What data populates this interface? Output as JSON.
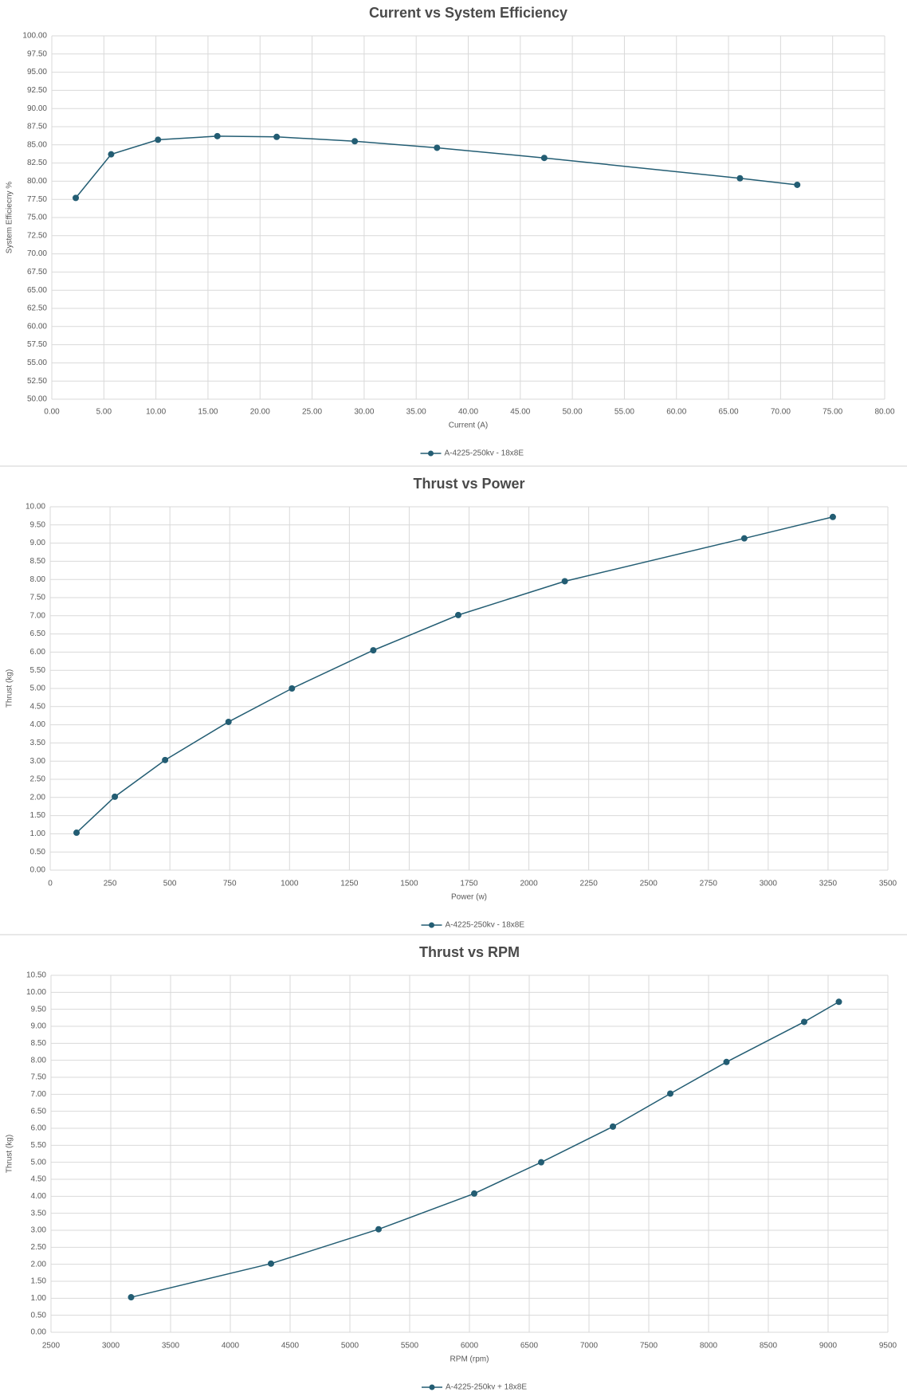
{
  "chart_data": [
    {
      "type": "line",
      "title": "Current vs System Efficiency",
      "x_label": "Current (A)",
      "y_label": "System Efficiecny %",
      "x": [
        2.3,
        5.7,
        10.2,
        15.9,
        21.6,
        29.1,
        37.0,
        47.3,
        66.1,
        71.6
      ],
      "series": [
        {
          "name": "A-4225-250kv - 18x8E",
          "color": "#235d73",
          "values": [
            77.7,
            83.7,
            85.7,
            86.2,
            86.1,
            85.5,
            84.6,
            83.2,
            80.4,
            79.5
          ]
        }
      ],
      "xlim": [
        0,
        80
      ],
      "ylim": [
        50,
        100
      ],
      "grid": true,
      "xticks": [
        {
          "value": 0,
          "label": "0.00"
        },
        {
          "value": 5,
          "label": "5.00"
        },
        {
          "value": 10,
          "label": "10.00"
        },
        {
          "value": 15,
          "label": "15.00"
        },
        {
          "value": 20,
          "label": "20.00"
        },
        {
          "value": 25,
          "label": "25.00"
        },
        {
          "value": 30,
          "label": "30.00"
        },
        {
          "value": 35,
          "label": "35.00"
        },
        {
          "value": 40,
          "label": "40.00"
        },
        {
          "value": 45,
          "label": "45.00"
        },
        {
          "value": 50,
          "label": "50.00"
        },
        {
          "value": 55,
          "label": "55.00"
        },
        {
          "value": 60,
          "label": "60.00"
        },
        {
          "value": 65,
          "label": "65.00"
        },
        {
          "value": 70,
          "label": "70.00"
        },
        {
          "value": 75,
          "label": "75.00"
        },
        {
          "value": 80,
          "label": "80.00"
        }
      ],
      "yticks": [
        {
          "value": 50,
          "label": "50.00"
        },
        {
          "value": 52.5,
          "label": "52.50"
        },
        {
          "value": 55,
          "label": "55.00"
        },
        {
          "value": 57.5,
          "label": "57.50"
        },
        {
          "value": 60,
          "label": "60.00"
        },
        {
          "value": 62.5,
          "label": "62.50"
        },
        {
          "value": 65,
          "label": "65.00"
        },
        {
          "value": 67.5,
          "label": "67.50"
        },
        {
          "value": 70,
          "label": "70.00"
        },
        {
          "value": 72.5,
          "label": "72.50"
        },
        {
          "value": 75,
          "label": "75.00"
        },
        {
          "value": 77.5,
          "label": "77.50"
        },
        {
          "value": 80,
          "label": "80.00"
        },
        {
          "value": 82.5,
          "label": "82.50"
        },
        {
          "value": 85,
          "label": "85.00"
        },
        {
          "value": 87.5,
          "label": "87.50"
        },
        {
          "value": 90,
          "label": "90.00"
        },
        {
          "value": 92.5,
          "label": "92.50"
        },
        {
          "value": 95,
          "label": "95.00"
        },
        {
          "value": 97.5,
          "label": "97.50"
        },
        {
          "value": 100,
          "label": "100.00"
        }
      ]
    },
    {
      "type": "line",
      "title": "Thrust vs Power",
      "x_label": "Power (w)",
      "y_label": "Thrust (kg)",
      "x": [
        110,
        270,
        480,
        745,
        1010,
        1350,
        1705,
        2150,
        2900,
        3270
      ],
      "series": [
        {
          "name": "A-4225-250kv - 18x8E",
          "color": "#235d73",
          "values": [
            1.03,
            2.02,
            3.03,
            4.08,
            5.0,
            6.05,
            7.02,
            7.95,
            9.13,
            9.72
          ]
        }
      ],
      "xlim": [
        0,
        3500
      ],
      "ylim": [
        0,
        10
      ],
      "grid": true,
      "xticks": [
        0,
        250,
        500,
        750,
        1000,
        1250,
        1500,
        1750,
        2000,
        2250,
        2500,
        2750,
        3000,
        3250,
        3500
      ],
      "yticks": [
        {
          "value": 0,
          "label": "0.00"
        },
        {
          "value": 0.5,
          "label": "0.50"
        },
        {
          "value": 1,
          "label": "1.00"
        },
        {
          "value": 1.5,
          "label": "1.50"
        },
        {
          "value": 2,
          "label": "2.00"
        },
        {
          "value": 2.5,
          "label": "2.50"
        },
        {
          "value": 3,
          "label": "3.00"
        },
        {
          "value": 3.5,
          "label": "3.50"
        },
        {
          "value": 4,
          "label": "4.00"
        },
        {
          "value": 4.5,
          "label": "4.50"
        },
        {
          "value": 5,
          "label": "5.00"
        },
        {
          "value": 5.5,
          "label": "5.50"
        },
        {
          "value": 6,
          "label": "6.00"
        },
        {
          "value": 6.5,
          "label": "6.50"
        },
        {
          "value": 7,
          "label": "7.00"
        },
        {
          "value": 7.5,
          "label": "7.50"
        },
        {
          "value": 8,
          "label": "8.00"
        },
        {
          "value": 8.5,
          "label": "8.50"
        },
        {
          "value": 9,
          "label": "9.00"
        },
        {
          "value": 9.5,
          "label": "9.50"
        },
        {
          "value": 10,
          "label": "10.00"
        }
      ]
    },
    {
      "type": "line",
      "title": "Thrust vs RPM",
      "x_label": "RPM (rpm)",
      "y_label": "Thrust (kg)",
      "x": [
        3170,
        4340,
        5240,
        6040,
        6600,
        7200,
        7680,
        8150,
        8800,
        9090
      ],
      "series": [
        {
          "name": "A-4225-250kv + 18x8E",
          "color": "#235d73",
          "values": [
            1.03,
            2.02,
            3.03,
            4.08,
            5.0,
            6.05,
            7.02,
            7.95,
            9.13,
            9.72
          ]
        }
      ],
      "xlim": [
        2500,
        9500
      ],
      "ylim": [
        0,
        10.5
      ],
      "grid": true,
      "xticks": [
        2500,
        3000,
        3500,
        4000,
        4500,
        5000,
        5500,
        6000,
        6500,
        7000,
        7500,
        8000,
        8500,
        9000,
        9500
      ],
      "yticks": [
        {
          "value": 0,
          "label": "0.00"
        },
        {
          "value": 0.5,
          "label": "0.50"
        },
        {
          "value": 1,
          "label": "1.00"
        },
        {
          "value": 1.5,
          "label": "1.50"
        },
        {
          "value": 2,
          "label": "2.00"
        },
        {
          "value": 2.5,
          "label": "2.50"
        },
        {
          "value": 3,
          "label": "3.00"
        },
        {
          "value": 3.5,
          "label": "3.50"
        },
        {
          "value": 4,
          "label": "4.00"
        },
        {
          "value": 4.5,
          "label": "4.50"
        },
        {
          "value": 5,
          "label": "5.00"
        },
        {
          "value": 5.5,
          "label": "5.50"
        },
        {
          "value": 6,
          "label": "6.00"
        },
        {
          "value": 6.5,
          "label": "6.50"
        },
        {
          "value": 7,
          "label": "7.00"
        },
        {
          "value": 7.5,
          "label": "7.50"
        },
        {
          "value": 8,
          "label": "8.00"
        },
        {
          "value": 8.5,
          "label": "8.50"
        },
        {
          "value": 9,
          "label": "9.00"
        },
        {
          "value": 9.5,
          "label": "9.50"
        },
        {
          "value": 10,
          "label": "10.00"
        },
        {
          "value": 10.5,
          "label": "10.50"
        }
      ]
    }
  ]
}
